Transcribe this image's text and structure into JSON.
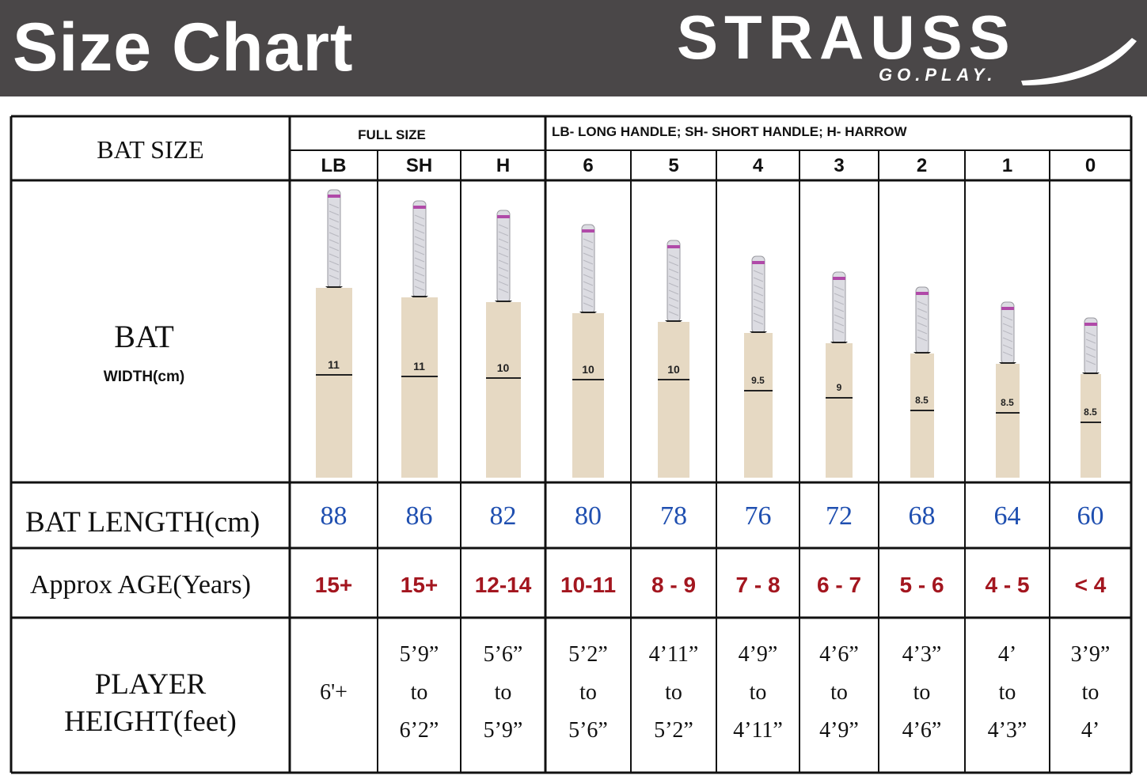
{
  "header": {
    "title": "Size Chart",
    "brand": "STRAUSS",
    "tagline": "GO.PLAY."
  },
  "table": {
    "row_labels": {
      "bat_size": "BAT SIZE",
      "bat": "BAT",
      "width": "WIDTH(cm)",
      "bat_length": "BAT LENGTH(cm)",
      "age": "Approx AGE(Years)",
      "height_line1": "PLAYER",
      "height_line2": "HEIGHT(feet)"
    },
    "full_size_header": "FULL SIZE",
    "legend_header": "LB- LONG HANDLE; SH- SHORT HANDLE; H- HARROW",
    "columns": [
      {
        "size": "LB",
        "width": "11",
        "length": "88",
        "age": "15+",
        "height": [
          "6'+"
        ]
      },
      {
        "size": "SH",
        "width": "11",
        "length": "86",
        "age": "15+",
        "height": [
          "5’9”",
          "to",
          "6’2”"
        ]
      },
      {
        "size": "H",
        "width": "10",
        "length": "82",
        "age": "12-14",
        "height": [
          "5’6”",
          "to",
          "5’9”"
        ]
      },
      {
        "size": "6",
        "width": "10",
        "length": "80",
        "age": "10-11",
        "height": [
          "5’2”",
          "to",
          "5’6”"
        ]
      },
      {
        "size": "5",
        "width": "10",
        "length": "78",
        "age": "8 - 9",
        "height": [
          "4’11”",
          "to",
          "5’2”"
        ]
      },
      {
        "size": "4",
        "width": "9.5",
        "length": "76",
        "age": "7 - 8",
        "height": [
          "4’9”",
          "to",
          "4’11”"
        ]
      },
      {
        "size": "3",
        "width": "9",
        "length": "72",
        "age": "6 - 7",
        "height": [
          "4’6”",
          "to",
          "4’9”"
        ]
      },
      {
        "size": "2",
        "width": "8.5",
        "length": "68",
        "age": "5 - 6",
        "height": [
          "4’3”",
          "to",
          "4’6”"
        ]
      },
      {
        "size": "1",
        "width": "8.5",
        "length": "64",
        "age": "4 - 5",
        "height": [
          "4’",
          "to",
          "4’3”"
        ]
      },
      {
        "size": "0",
        "width": "8.5",
        "length": "60",
        "age": "< 4",
        "height": [
          "3’9”",
          "to",
          "4’"
        ]
      }
    ]
  },
  "colors": {
    "header_bg": "#4a4748",
    "length_text": "#1f4fb0",
    "age_text": "#a3161f",
    "bat_wood": "#e6d9c3",
    "grip": "#dcdce2",
    "grip_band": "#b04aa8"
  }
}
